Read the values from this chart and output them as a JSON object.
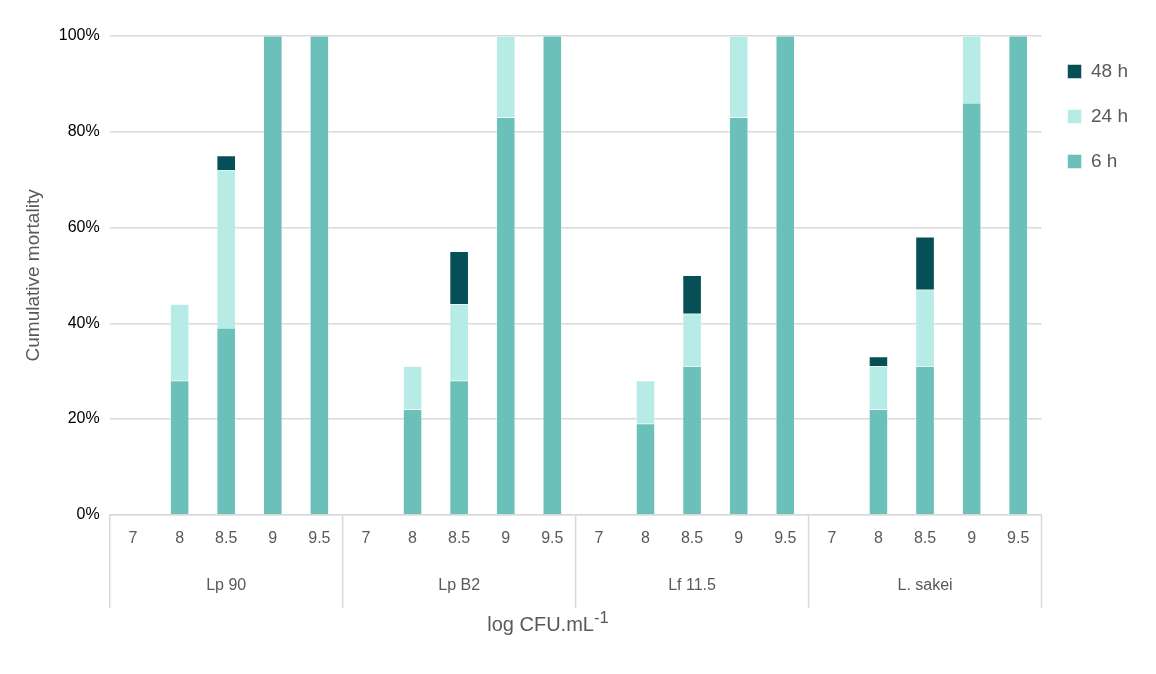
{
  "chart_data": {
    "type": "bar",
    "stacked": true,
    "ylabel": "Cumulative mortality",
    "xlabel": "log CFU.mL$^{-1}$",
    "categories": [
      "7",
      "8",
      "8.5",
      "9",
      "9.5",
      "7",
      "8",
      "8.5",
      "9",
      "9.5",
      "7",
      "8",
      "8.5",
      "9",
      "9.5",
      "7",
      "8",
      "8.5",
      "9",
      "9.5"
    ],
    "annotations": [
      "Lp 90",
      "Lp B2",
      "Lf 11.5",
      "L. sakei"
    ],
    "series": [
      {
        "name": "6 h",
        "color": "#6bc1b9",
        "values": [
          0,
          28,
          39,
          100,
          100,
          0,
          22,
          28,
          83,
          100,
          0,
          19,
          31,
          83,
          100,
          0,
          22,
          31,
          86,
          100
        ]
      },
      {
        "name": "24 h",
        "color": "#b6ece5",
        "values": [
          0,
          16,
          33,
          0,
          0,
          0,
          9,
          16,
          17,
          0,
          0,
          9,
          11,
          17,
          0,
          0,
          9,
          16,
          14,
          0
        ]
      },
      {
        "name": "48 h",
        "color": "#074f56",
        "values": [
          0,
          0,
          3,
          0,
          0,
          0,
          0,
          11,
          0,
          0,
          0,
          0,
          8,
          0,
          0,
          0,
          2,
          11,
          0,
          0
        ]
      }
    ],
    "ylim": [
      0,
      100
    ],
    "yticks": [
      {
        "value": 0,
        "label": "0%"
      },
      {
        "value": 20,
        "label": "20%"
      },
      {
        "value": 40,
        "label": "40%"
      },
      {
        "value": 60,
        "label": "60%"
      },
      {
        "value": 80,
        "label": "80%"
      },
      {
        "value": 100,
        "label": "100%"
      }
    ],
    "grid": "y",
    "legend": "top right"
  }
}
